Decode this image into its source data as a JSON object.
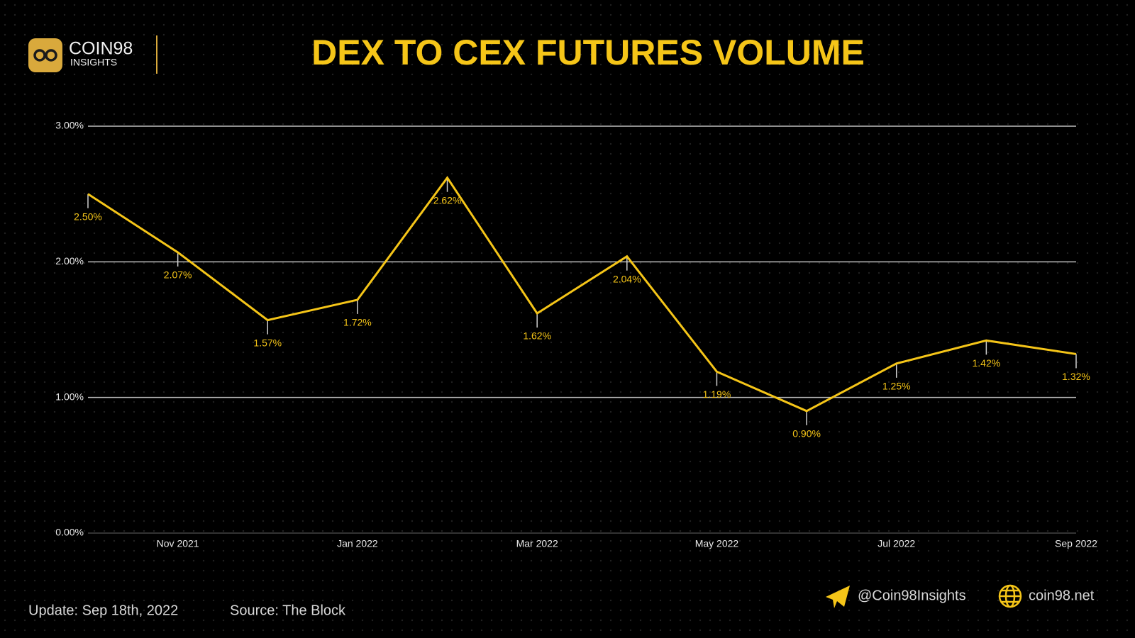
{
  "logo": {
    "name": "COIN98",
    "sub": "INSIGHTS"
  },
  "footer": {
    "update": "Update: Sep 18th, 2022",
    "source": "Source: The Block",
    "telegram": "@Coin98Insights",
    "website": "coin98.net"
  },
  "chart_data": {
    "type": "line",
    "title": "DEX TO CEX FUTURES VOLUME",
    "categories": [
      null,
      "Nov 2021",
      null,
      "Jan 2022",
      null,
      "Mar 2022",
      null,
      "May 2022",
      null,
      "Jul 2022",
      null,
      "Sep 2022"
    ],
    "values": [
      2.5,
      2.07,
      1.57,
      1.72,
      2.62,
      1.62,
      2.04,
      1.19,
      0.9,
      1.25,
      1.42,
      1.32
    ],
    "value_labels": [
      "2.50%",
      "2.07%",
      "1.57%",
      "1.72%",
      "2.62%",
      "1.62%",
      "2.04%",
      "1.19%",
      "0.90%",
      "1.25%",
      "1.42%",
      "1.32%"
    ],
    "color": "#f5c518",
    "ylim": [
      0,
      3
    ],
    "yticks": [
      {
        "value": 0,
        "label": "0.00%"
      },
      {
        "value": 1,
        "label": "1.00%"
      },
      {
        "value": 2,
        "label": "2.00%"
      },
      {
        "value": 3,
        "label": "3.00%"
      }
    ],
    "grid": true
  }
}
